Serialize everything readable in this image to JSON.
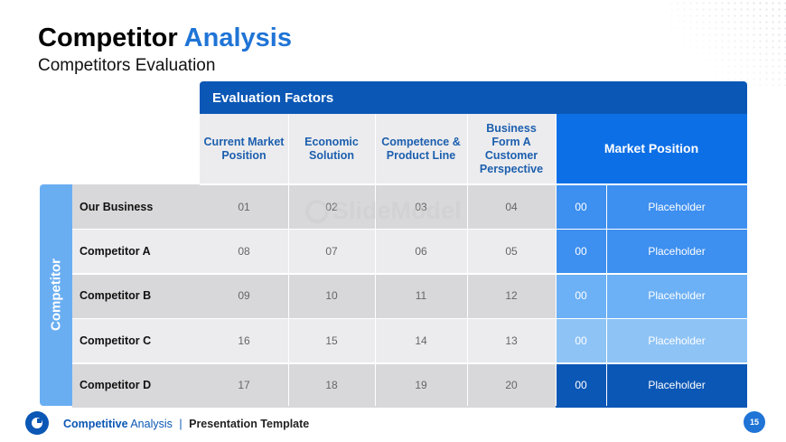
{
  "slide": {
    "title_part1": "Competitor",
    "title_part2": "Analysis",
    "subtitle": "Competitors Evaluation",
    "page_number": "15",
    "watermark": "SlideModel"
  },
  "footer": {
    "part1": "Competitive",
    "part2": "Analysis",
    "separator": "|",
    "part3": "Presentation Template"
  },
  "table": {
    "group_header": "Evaluation Factors",
    "row_group_label": "Competitor",
    "columns": [
      "Current Market Position",
      "Economic Solution",
      "Competence & Product Line",
      "Business Form A Customer Perspective"
    ],
    "market_position_header": "Market Position",
    "rows": [
      {
        "label": "Our Business",
        "values": [
          "01",
          "02",
          "03",
          "04"
        ],
        "mp_value": "00",
        "mp_text": "Placeholder",
        "mp_color": "#3d8ff0",
        "mp_color_light": "#3d8ff0"
      },
      {
        "label": "Competitor A",
        "values": [
          "08",
          "07",
          "06",
          "05"
        ],
        "mp_value": "00",
        "mp_text": "Placeholder",
        "mp_color": "#3d8ff0",
        "mp_color_light": "#3d8ff0"
      },
      {
        "label": "Competitor B",
        "values": [
          "09",
          "10",
          "11",
          "12"
        ],
        "mp_value": "00",
        "mp_text": "Placeholder",
        "mp_color": "#6cb0f5",
        "mp_color_light": "#6cb0f5"
      },
      {
        "label": "Competitor C",
        "values": [
          "16",
          "15",
          "14",
          "13"
        ],
        "mp_value": "00",
        "mp_text": "Placeholder",
        "mp_color": "#8ec3f6",
        "mp_color_light": "#8ec3f6"
      },
      {
        "label": "Competitor D",
        "values": [
          "17",
          "18",
          "19",
          "20"
        ],
        "mp_value": "00",
        "mp_text": "Placeholder",
        "mp_color": "#0b57b5",
        "mp_color_light": "#0b57b5"
      }
    ],
    "row_bg_dark": "#d8d8da",
    "row_bg_light": "#ececee"
  }
}
